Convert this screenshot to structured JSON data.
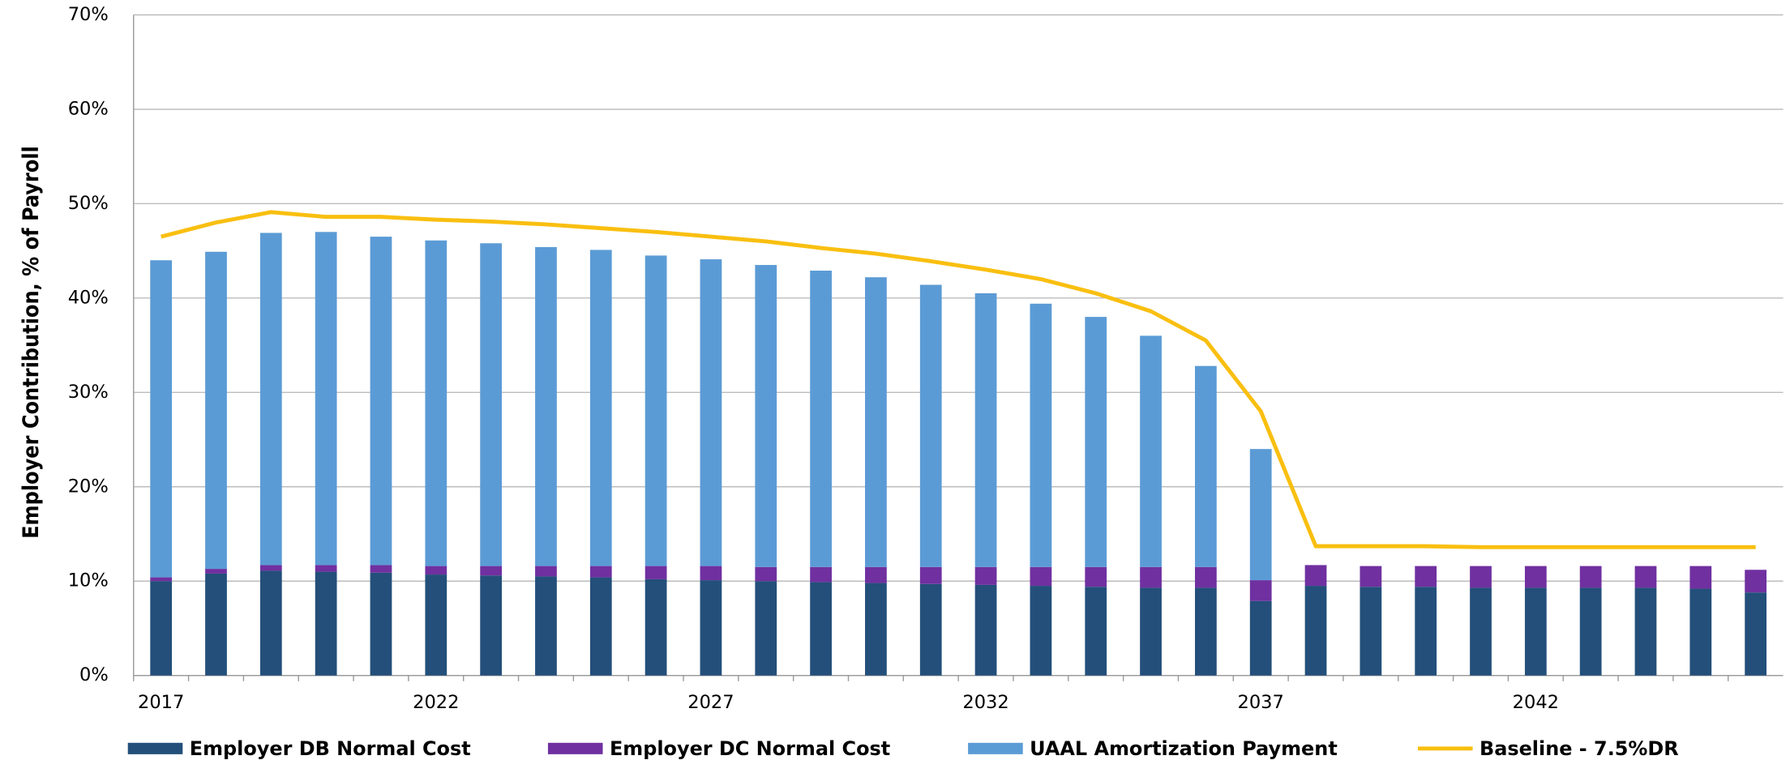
{
  "chart_data": {
    "type": "stacked-bar-line",
    "y_label": "Employer Contribution, % of Payroll",
    "categories": [
      "2017",
      null,
      null,
      null,
      null,
      "2022",
      null,
      null,
      null,
      null,
      "2027",
      null,
      null,
      null,
      null,
      "2032",
      null,
      null,
      null,
      null,
      "2037",
      null,
      null,
      null,
      null,
      "2042",
      null,
      null,
      null,
      null
    ],
    "series": [
      {
        "name": "Employer DB Normal Cost",
        "color": "#234f7a",
        "kind": "bar",
        "values": [
          10.0,
          10.8,
          11.1,
          11.0,
          10.9,
          10.7,
          10.6,
          10.5,
          10.4,
          10.2,
          10.1,
          10.0,
          9.9,
          9.8,
          9.7,
          9.6,
          9.5,
          9.4,
          9.3,
          9.3,
          7.9,
          9.5,
          9.4,
          9.4,
          9.3,
          9.3,
          9.3,
          9.3,
          9.2,
          8.8
        ]
      },
      {
        "name": "Employer DC Normal Cost",
        "color": "#7030a0",
        "kind": "bar",
        "values": [
          0.4,
          0.5,
          0.6,
          0.7,
          0.8,
          0.9,
          1.0,
          1.1,
          1.2,
          1.4,
          1.5,
          1.5,
          1.6,
          1.7,
          1.8,
          1.9,
          2.0,
          2.1,
          2.2,
          2.2,
          2.2,
          2.2,
          2.2,
          2.2,
          2.3,
          2.3,
          2.3,
          2.3,
          2.4,
          2.4
        ]
      },
      {
        "name": "UAAL Amortization Payment",
        "color": "#5b9bd5",
        "kind": "bar",
        "values": [
          33.6,
          33.6,
          35.2,
          35.3,
          34.8,
          34.5,
          34.2,
          33.8,
          33.5,
          32.9,
          32.5,
          32.0,
          31.4,
          30.7,
          29.9,
          29.0,
          27.9,
          26.5,
          24.5,
          21.3,
          13.9,
          0,
          0,
          0,
          0,
          0,
          0,
          0,
          0,
          0
        ]
      },
      {
        "name": "Baseline - 7.5%DR",
        "color": "#f9bf10",
        "kind": "line",
        "values": [
          46.5,
          48.0,
          49.1,
          48.6,
          48.6,
          48.3,
          48.1,
          47.8,
          47.4,
          47.0,
          46.5,
          46.0,
          45.3,
          44.7,
          43.9,
          43.0,
          42.0,
          40.5,
          38.6,
          35.5,
          28.0,
          13.7,
          13.7,
          13.7,
          13.6,
          13.6,
          13.6,
          13.6,
          13.6,
          13.6
        ]
      }
    ],
    "ylim": [
      0,
      70
    ],
    "yticks": [
      {
        "value": 0,
        "label": "0%"
      },
      {
        "value": 10,
        "label": "10%"
      },
      {
        "value": 20,
        "label": "20%"
      },
      {
        "value": 30,
        "label": "30%"
      },
      {
        "value": 40,
        "label": "40%"
      },
      {
        "value": 50,
        "label": "50%"
      },
      {
        "value": 60,
        "label": "60%"
      },
      {
        "value": 70,
        "label": "70%"
      }
    ],
    "grid": true,
    "legend": "bottom"
  }
}
